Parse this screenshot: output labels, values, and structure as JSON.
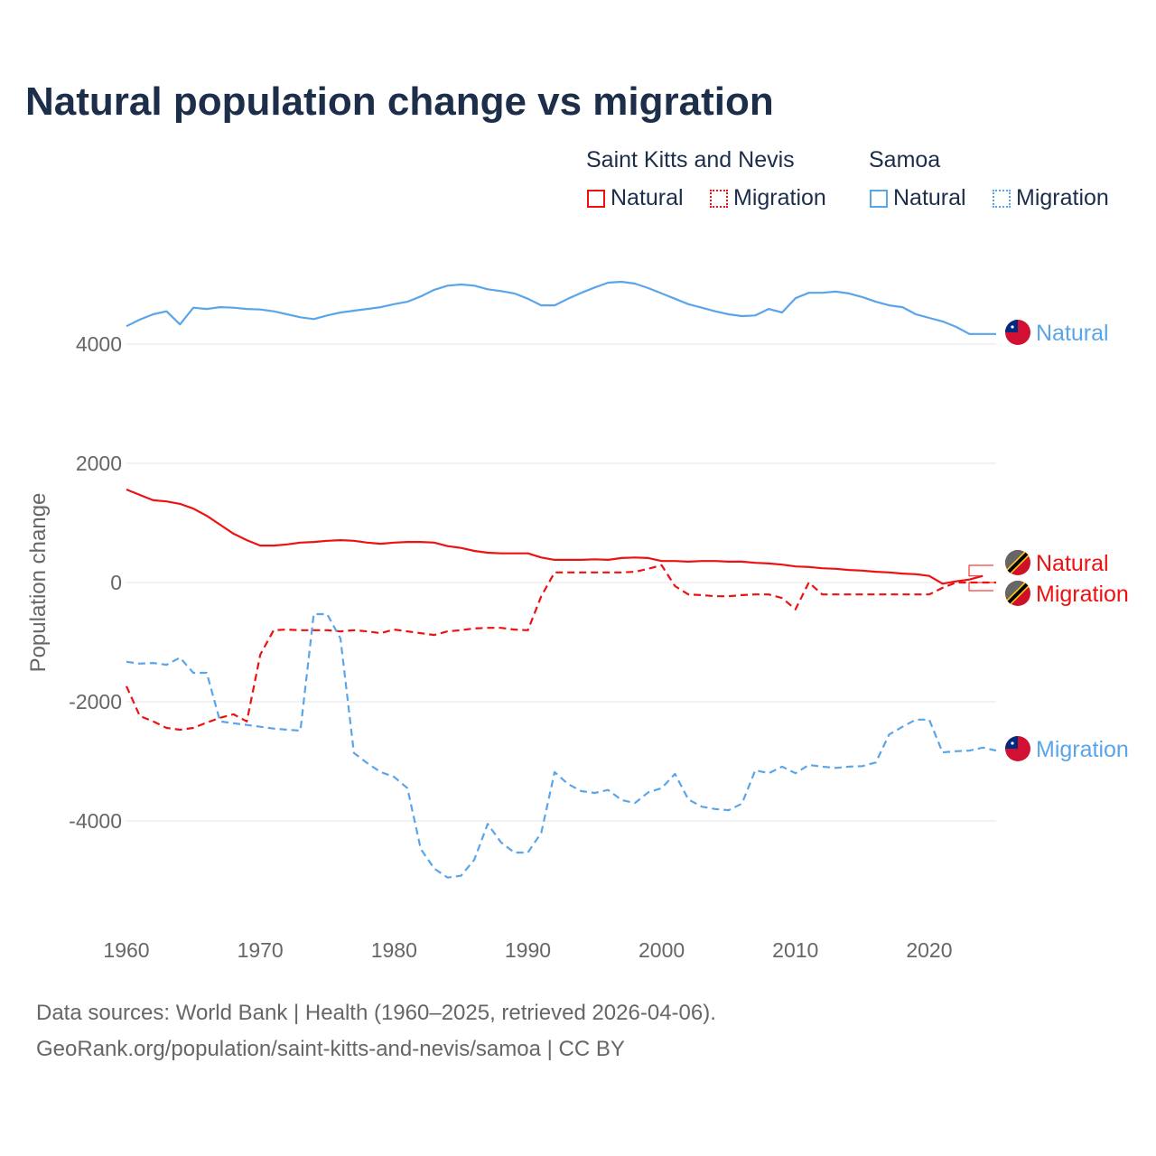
{
  "colors": {
    "skn": "#ee1111",
    "samoa": "#5aa5ea",
    "title": "#1c2e4a"
  },
  "chart_data": {
    "type": "line",
    "title": "Natural population change vs migration",
    "xlabel": "",
    "ylabel": "Population change",
    "xlim": [
      1960,
      2025
    ],
    "ylim": [
      -5500,
      5500
    ],
    "x_ticks": [
      1960,
      1970,
      1980,
      1990,
      2000,
      2010,
      2020
    ],
    "y_ticks": [
      -4000,
      -2000,
      0,
      2000,
      4000
    ],
    "y_tick_labels": [
      "-4000",
      "-2000",
      "0",
      "2000",
      "4000"
    ],
    "grid": true,
    "legend_placement": "top-right",
    "legend": {
      "groups": [
        {
          "name": "Saint Kitts and Nevis",
          "items": [
            "Natural",
            "Migration"
          ]
        },
        {
          "name": "Samoa",
          "items": [
            "Natural",
            "Migration"
          ]
        }
      ]
    },
    "series": [
      {
        "name": "Samoa Natural",
        "country": "Samoa",
        "kind": "Natural",
        "end_label": "Natural",
        "start_year": 1960,
        "values": [
          4300,
          4410,
          4500,
          4550,
          4330,
          4610,
          4590,
          4620,
          4610,
          4590,
          4580,
          4550,
          4500,
          4450,
          4420,
          4480,
          4530,
          4560,
          4590,
          4620,
          4670,
          4710,
          4800,
          4910,
          4980,
          5000,
          4980,
          4920,
          4890,
          4850,
          4760,
          4650,
          4650,
          4760,
          4860,
          4950,
          5030,
          5045,
          5015,
          4940,
          4850,
          4760,
          4670,
          4610,
          4550,
          4500,
          4470,
          4480,
          4590,
          4530,
          4770,
          4860,
          4860,
          4880,
          4850,
          4790,
          4710,
          4650,
          4620,
          4500,
          4440,
          4380,
          4290,
          4170,
          4170,
          4170
        ]
      },
      {
        "name": "Saint Kitts and Nevis Natural",
        "country": "Saint Kitts and Nevis",
        "kind": "Natural",
        "end_label": "Natural",
        "start_year": 1960,
        "values": [
          1560,
          1470,
          1380,
          1360,
          1320,
          1240,
          1120,
          970,
          820,
          710,
          620,
          620,
          640,
          670,
          680,
          700,
          710,
          700,
          670,
          650,
          670,
          680,
          680,
          670,
          610,
          580,
          530,
          500,
          490,
          490,
          490,
          420,
          380,
          380,
          380,
          390,
          380,
          410,
          420,
          410,
          360,
          360,
          350,
          360,
          360,
          350,
          350,
          330,
          320,
          300,
          270,
          260,
          240,
          230,
          210,
          200,
          180,
          170,
          150,
          140,
          110,
          -20,
          20,
          50,
          110
        ]
      },
      {
        "name": "Saint Kitts and Nevis Migration",
        "country": "Saint Kitts and Nevis",
        "kind": "Migration",
        "end_label": "Migration",
        "start_year": 1960,
        "values": [
          -1740,
          -2240,
          -2330,
          -2440,
          -2470,
          -2440,
          -2350,
          -2270,
          -2210,
          -2330,
          -1210,
          -800,
          -790,
          -800,
          -800,
          -800,
          -820,
          -800,
          -820,
          -850,
          -790,
          -820,
          -850,
          -880,
          -820,
          -800,
          -770,
          -760,
          -760,
          -790,
          -800,
          -230,
          170,
          170,
          170,
          170,
          170,
          170,
          180,
          230,
          290,
          -60,
          -200,
          -210,
          -230,
          -230,
          -210,
          -200,
          -200,
          -260,
          -450,
          0,
          -200,
          -200,
          -200,
          -200,
          -200,
          -200,
          -200,
          -200,
          -200,
          -90,
          0,
          0,
          0,
          0
        ]
      },
      {
        "name": "Samoa Migration",
        "country": "Samoa",
        "kind": "Migration",
        "end_label": "Migration",
        "start_year": 1960,
        "values": [
          -1330,
          -1360,
          -1350,
          -1380,
          -1260,
          -1515,
          -1515,
          -2330,
          -2360,
          -2390,
          -2420,
          -2450,
          -2470,
          -2485,
          -530,
          -530,
          -940,
          -2860,
          -3030,
          -3180,
          -3260,
          -3450,
          -4470,
          -4800,
          -4950,
          -4920,
          -4650,
          -4050,
          -4360,
          -4530,
          -4530,
          -4200,
          -3180,
          -3380,
          -3500,
          -3530,
          -3480,
          -3650,
          -3700,
          -3520,
          -3450,
          -3210,
          -3640,
          -3760,
          -3800,
          -3820,
          -3710,
          -3150,
          -3200,
          -3090,
          -3200,
          -3060,
          -3090,
          -3110,
          -3090,
          -3080,
          -3020,
          -2550,
          -2420,
          -2300,
          -2300,
          -2850,
          -2830,
          -2820,
          -2770,
          -2820
        ]
      }
    ]
  },
  "footer": {
    "line1": "Data sources: World Bank | Health (1960–2025, retrieved 2026-04-06).",
    "line2": "GeoRank.org/population/saint-kitts-and-nevis/samoa | CC BY"
  }
}
